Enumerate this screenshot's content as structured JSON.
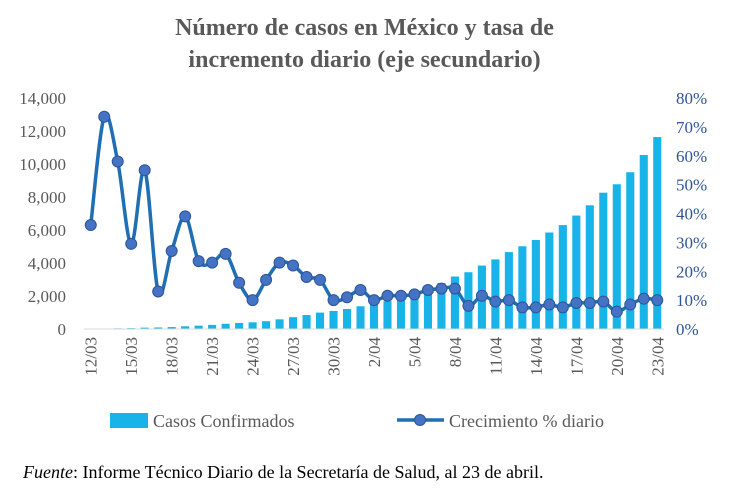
{
  "chart_data": {
    "type": "bar+line",
    "title": [
      "Número de casos en México y tasa de",
      "incremento diario (eje secundario)"
    ],
    "categories": [
      "12/03",
      "13/03",
      "14/03",
      "15/03",
      "16/03",
      "17/03",
      "18/03",
      "19/03",
      "20/03",
      "21/03",
      "22/03",
      "23/03",
      "24/03",
      "25/03",
      "26/03",
      "27/03",
      "28/03",
      "29/03",
      "30/03",
      "31/03",
      "1/04",
      "2/04",
      "3/04",
      "4/04",
      "5/04",
      "6/04",
      "7/04",
      "8/04",
      "9/04",
      "10/04",
      "11/04",
      "12/04",
      "13/04",
      "14/04",
      "15/04",
      "16/04",
      "17/04",
      "18/04",
      "19/04",
      "20/04",
      "21/04",
      "22/04",
      "23/04"
    ],
    "x_tick_labels": [
      "12/03",
      "15/03",
      "18/03",
      "21/03",
      "24/03",
      "27/03",
      "30/03",
      "2/04",
      "5/04",
      "8/04",
      "11/04",
      "14/04",
      "17/04",
      "20/04",
      "23/04"
    ],
    "y_left": {
      "min": 0,
      "max": 14000,
      "step": 2000,
      "tick_labels": [
        "0",
        "2,000",
        "4,000",
        "6,000",
        "8,000",
        "10,000",
        "12,000",
        "14,000"
      ]
    },
    "y_right": {
      "min": 0,
      "max": 0.8,
      "step": 0.1,
      "tick_labels": [
        "0%",
        "10%",
        "20%",
        "30%",
        "40%",
        "50%",
        "60%",
        "70%",
        "80%"
      ]
    },
    "series": [
      {
        "name": "Casos Confirmados",
        "type": "bar",
        "axis": "left",
        "color": "#18b4e8",
        "values": [
          15,
          26,
          41,
          53,
          82,
          93,
          118,
          164,
          203,
          251,
          316,
          367,
          405,
          475,
          585,
          717,
          848,
          993,
          1094,
          1215,
          1378,
          1510,
          1688,
          1890,
          2143,
          2439,
          2785,
          3181,
          3441,
          3844,
          4219,
          4661,
          5014,
          5399,
          5847,
          6297,
          6875,
          7497,
          8261,
          8772,
          9501,
          10544,
          11633
        ]
      },
      {
        "name": "Crecimiento % diario",
        "type": "line",
        "axis": "right",
        "color": "#1f6fb2",
        "values": [
          0.36,
          0.735,
          0.58,
          0.295,
          0.55,
          0.13,
          0.27,
          0.39,
          0.235,
          0.23,
          0.26,
          0.16,
          0.1,
          0.17,
          0.23,
          0.22,
          0.18,
          0.17,
          0.1,
          0.11,
          0.135,
          0.1,
          0.115,
          0.115,
          0.12,
          0.135,
          0.14,
          0.14,
          0.08,
          0.115,
          0.095,
          0.1,
          0.075,
          0.075,
          0.085,
          0.075,
          0.09,
          0.09,
          0.095,
          0.06,
          0.085,
          0.105,
          0.1
        ]
      }
    ],
    "legend": {
      "position": "bottom",
      "entries": [
        "Casos Confirmados",
        "Crecimiento % diario"
      ]
    }
  },
  "source": {
    "label": "Fuente",
    "text": ": Informe Técnico Diario de la Secretaría de Salud, al 23 de abril."
  }
}
